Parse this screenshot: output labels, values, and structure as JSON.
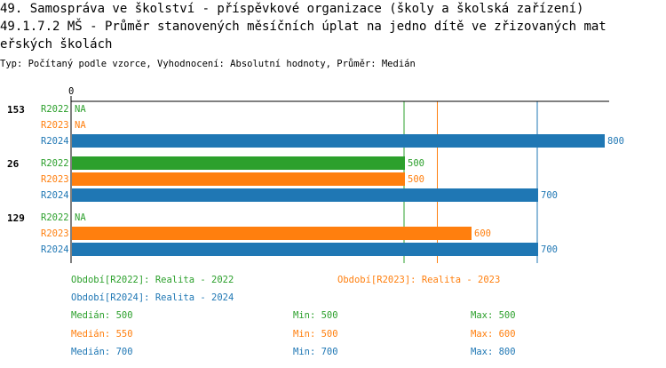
{
  "header": {
    "title_line1": "49. Samospráva ve školství - příspěvkové organizace (školy a školská zařízení)",
    "title_line2": "49.1.7.2 MŠ - Průměr stanovených měsíčních úplat na jedno dítě ve zřizovaných mat",
    "title_line3": "eřských školách",
    "subtitle": "Typ: Počítaný podle vzorce, Vyhodnocení: Absolutní hodnoty, Průměr: Medián"
  },
  "colors": {
    "R2022": "#2ca02c",
    "R2023": "#ff7f0e",
    "R2024": "#1f77b4"
  },
  "chart_data": {
    "type": "bar",
    "orientation": "horizontal",
    "axis_zero_label": "0",
    "xlim": [
      0,
      800
    ],
    "groups": [
      {
        "label": "153",
        "bars": [
          {
            "series": "R2022",
            "value": null,
            "value_label": "NA"
          },
          {
            "series": "R2023",
            "value": null,
            "value_label": "NA"
          },
          {
            "series": "R2024",
            "value": 800,
            "value_label": "800"
          }
        ]
      },
      {
        "label": "26",
        "bars": [
          {
            "series": "R2022",
            "value": 500,
            "value_label": "500"
          },
          {
            "series": "R2023",
            "value": 500,
            "value_label": "500"
          },
          {
            "series": "R2024",
            "value": 700,
            "value_label": "700"
          }
        ]
      },
      {
        "label": "129",
        "bars": [
          {
            "series": "R2022",
            "value": null,
            "value_label": "NA"
          },
          {
            "series": "R2023",
            "value": 600,
            "value_label": "600"
          },
          {
            "series": "R2024",
            "value": 700,
            "value_label": "700"
          }
        ]
      }
    ],
    "median_lines": [
      {
        "series": "R2022",
        "value": 500
      },
      {
        "series": "R2023",
        "value": 550
      },
      {
        "series": "R2024",
        "value": 700
      }
    ]
  },
  "legend": {
    "R2022": "Období[R2022]: Realita - 2022",
    "R2023": "Období[R2023]: Realita - 2023",
    "R2024": "Období[R2024]: Realita - 2024"
  },
  "stats": [
    {
      "series": "R2022",
      "median": "Medián: 500",
      "min": "Min: 500",
      "max": "Max: 500"
    },
    {
      "series": "R2023",
      "median": "Medián: 550",
      "min": "Min: 500",
      "max": "Max: 600"
    },
    {
      "series": "R2024",
      "median": "Medián: 700",
      "min": "Min: 700",
      "max": "Max: 800"
    }
  ]
}
